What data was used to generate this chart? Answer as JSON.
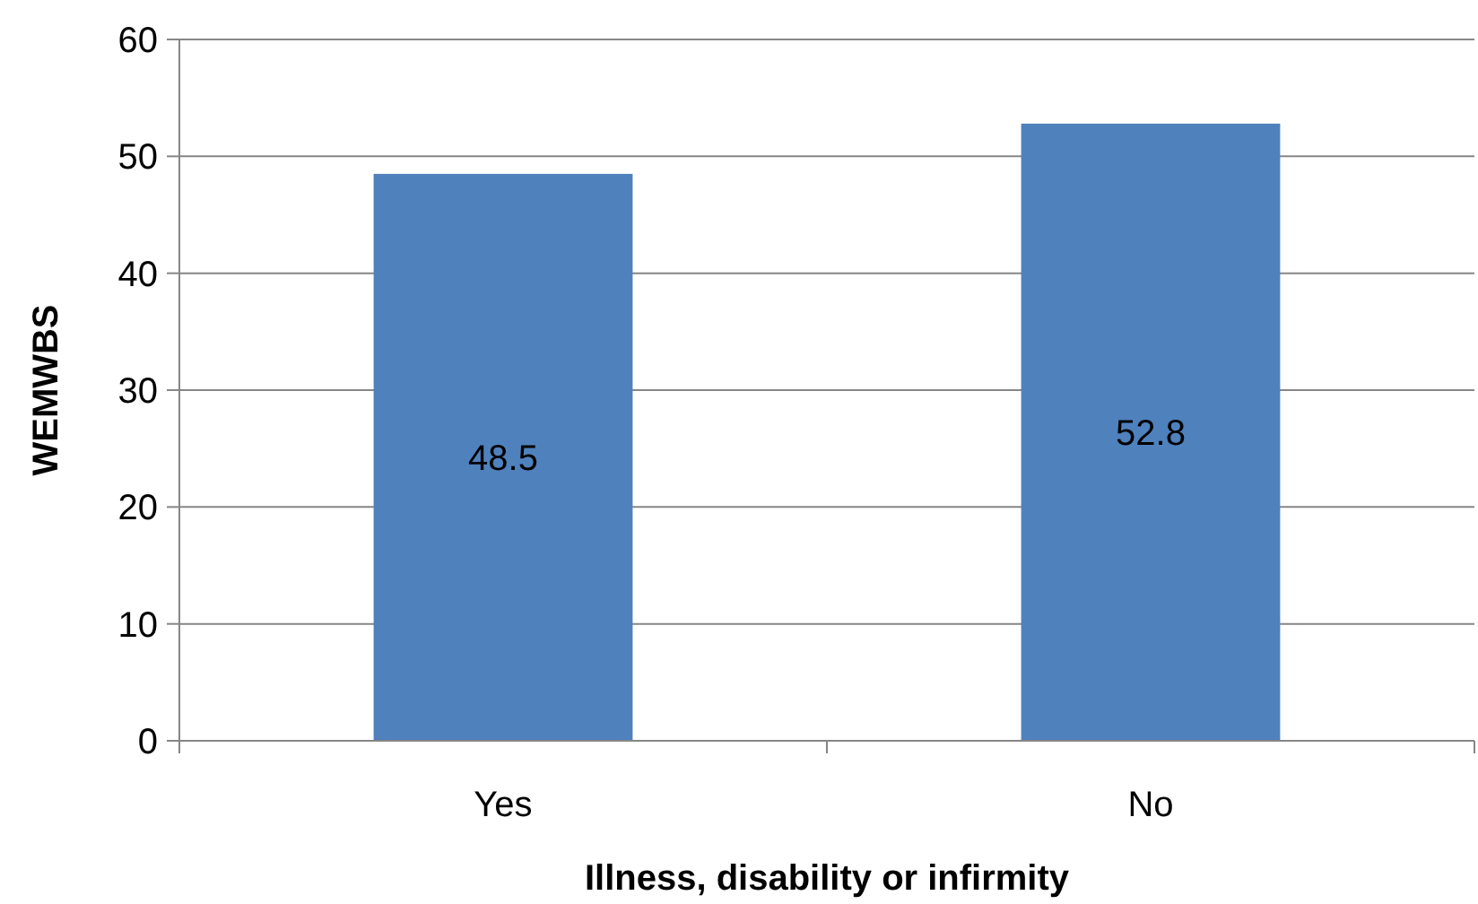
{
  "chart_data": {
    "type": "bar",
    "xlabel": "Illness, disability or infirmity",
    "ylabel": "WEMWBS",
    "categories": [
      "Yes",
      "No"
    ],
    "values": [
      48.5,
      52.8
    ],
    "color": "#4f81bd",
    "ylim": [
      0,
      60
    ],
    "yticks": [
      0,
      10,
      20,
      30,
      40,
      50,
      60
    ],
    "grid": "y",
    "data_labels": true
  }
}
